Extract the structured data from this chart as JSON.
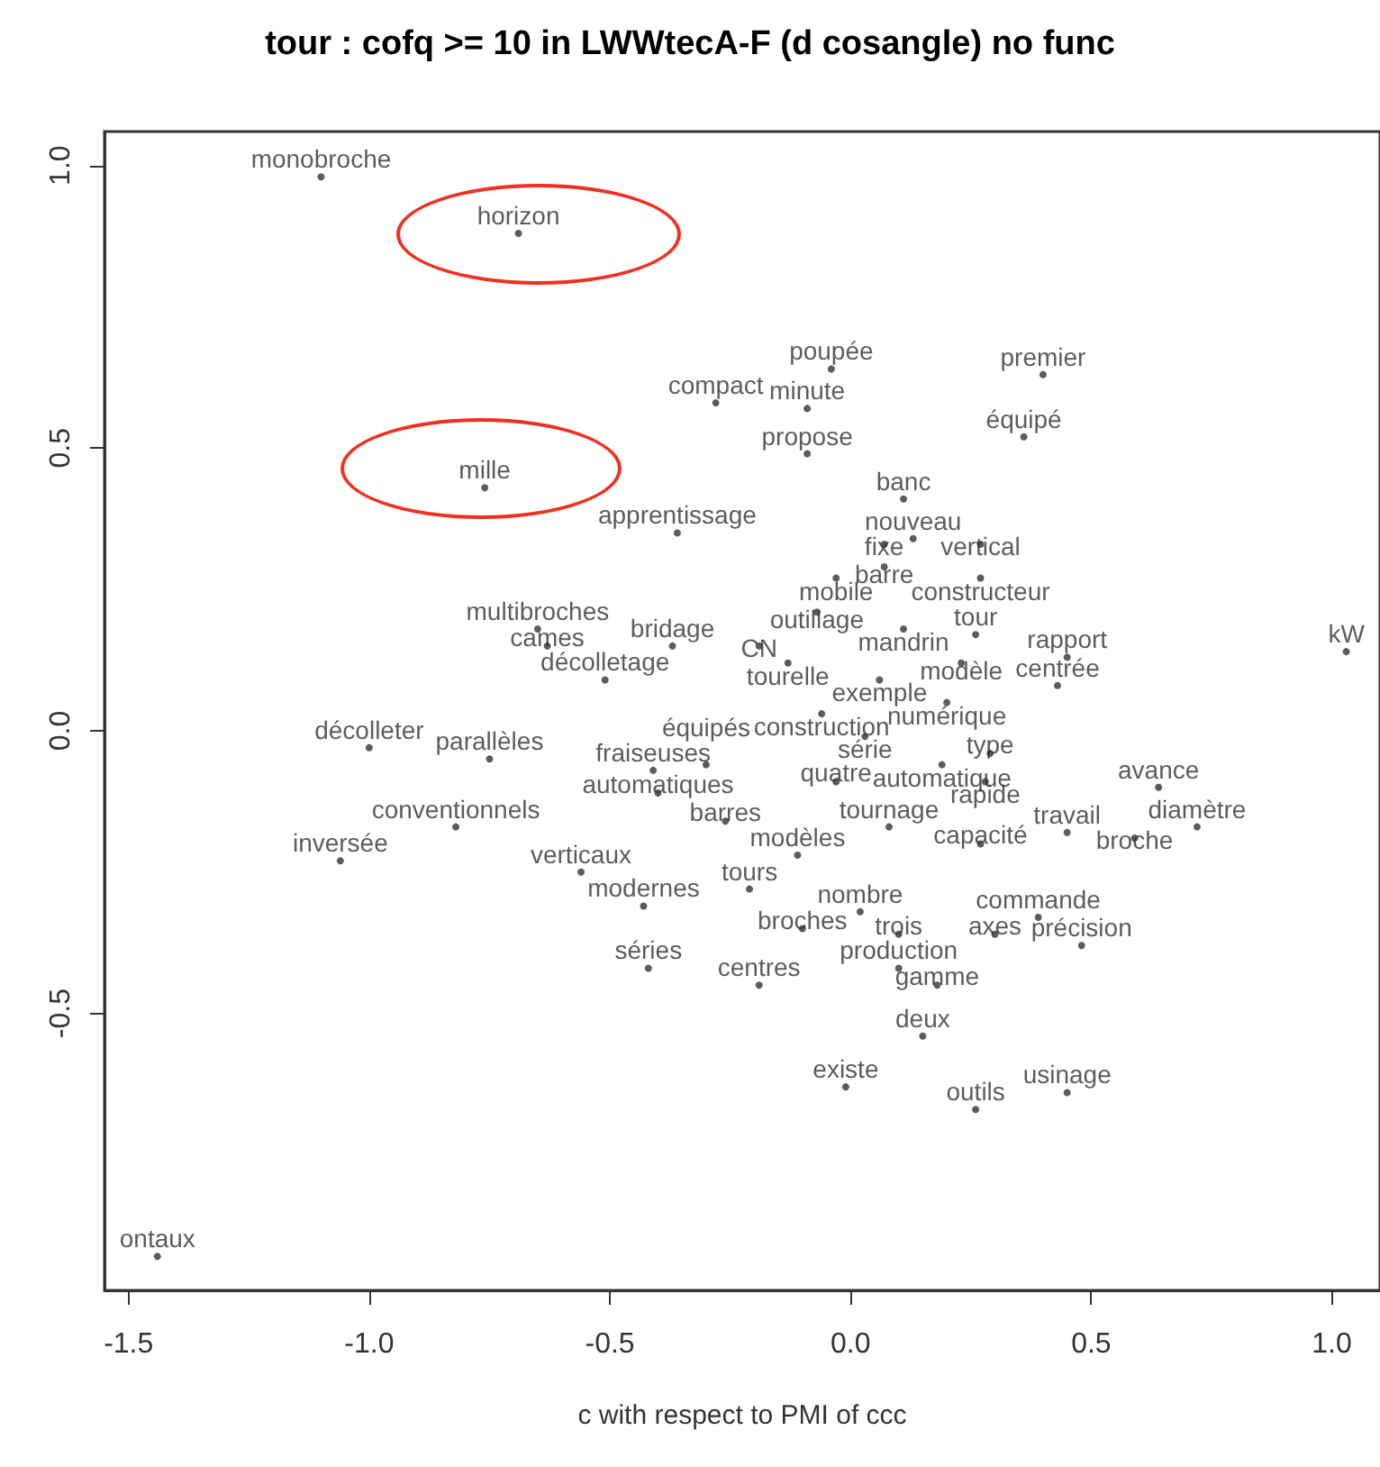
{
  "chart_data": {
    "type": "scatter",
    "title": "tour : cofq >= 10 in LWWtecA-F (d cosangle) no func",
    "xlabel": "c with respect to PMI of ccc",
    "marker": "circle",
    "grid": false,
    "xlim": [
      -1.55,
      1.1
    ],
    "xticks": [
      {
        "value": -1.5,
        "label": "-1.5"
      },
      {
        "value": -1,
        "label": "-1.0"
      },
      {
        "value": -0.5,
        "label": "-0.5"
      },
      {
        "value": 0,
        "label": "0.0"
      },
      {
        "value": 0.5,
        "label": "0.5"
      },
      {
        "value": 1,
        "label": "1.0"
      }
    ],
    "ylim": [
      -0.99,
      1.06
    ],
    "yticks": [
      {
        "value": -0.5,
        "label": "-0.5"
      },
      {
        "value": 0,
        "label": "0.0"
      },
      {
        "value": 0.5,
        "label": "0.5"
      },
      {
        "value": 1,
        "label": "1.0"
      }
    ],
    "series": [
      {
        "color": "#333333",
        "x": [
          -1.1,
          -0.69,
          -0.04,
          0.4,
          -0.28,
          -0.09,
          0.36,
          -0.09,
          -0.76,
          0.11,
          -0.36,
          0.13,
          0.07,
          0.27,
          0.07,
          -0.03,
          0.27,
          -0.07,
          -0.65,
          0.11,
          0.26,
          -0.63,
          -0.37,
          -0.19,
          -0.13,
          0.23,
          0.45,
          -0.51,
          0.06,
          0.43,
          0.2,
          -0.06,
          -1.0,
          -0.75,
          0.03,
          -0.41,
          -0.3,
          -0.4,
          -0.03,
          0.19,
          0.29,
          0.28,
          0.64,
          -0.82,
          -0.26,
          0.08,
          0.27,
          0.45,
          0.59,
          0.72,
          -1.06,
          -0.11,
          -0.56,
          -0.21,
          -0.43,
          0.02,
          0.39,
          -0.1,
          0.1,
          0.3,
          0.48,
          -0.42,
          -0.19,
          0.1,
          0.18,
          0.15,
          -0.01,
          0.26,
          0.45,
          1.03,
          -1.44
        ],
        "values": [
          0.98,
          0.88,
          0.64,
          0.63,
          0.58,
          0.57,
          0.52,
          0.49,
          0.43,
          0.41,
          0.35,
          0.34,
          0.33,
          0.33,
          0.29,
          0.27,
          0.27,
          0.21,
          0.18,
          0.18,
          0.17,
          0.15,
          0.15,
          0.15,
          0.12,
          0.12,
          0.13,
          0.09,
          0.09,
          0.08,
          0.05,
          0.03,
          -0.03,
          -0.05,
          -0.01,
          -0.07,
          -0.06,
          -0.11,
          -0.09,
          -0.06,
          -0.04,
          -0.09,
          -0.1,
          -0.17,
          -0.16,
          -0.17,
          -0.2,
          -0.18,
          -0.19,
          -0.17,
          -0.23,
          -0.22,
          -0.25,
          -0.28,
          -0.31,
          -0.32,
          -0.33,
          -0.35,
          -0.36,
          -0.36,
          -0.38,
          -0.42,
          -0.45,
          -0.42,
          -0.45,
          -0.54,
          -0.63,
          -0.67,
          -0.64,
          0.14,
          -0.93
        ],
        "value_labels": [
          "monobroche",
          "horizon",
          "poupée",
          "premier",
          "compact",
          "minute",
          "équipé",
          "propose",
          "mille",
          "banc",
          "apprentissage",
          "nouveau",
          "fixe",
          "vertical",
          "barre",
          "mobile",
          "constructeur",
          "outillage",
          "multibroches",
          "mandrin",
          "tour",
          "cames",
          "bridage",
          "CN",
          "tourelle",
          "modèle",
          "rapport",
          "décolletage",
          "exemple",
          "centrée",
          "numérique",
          "construction",
          "décolleter",
          "parallèles",
          "série",
          "fraiseuses",
          "équipés",
          "automatiques",
          "quatre",
          "automatique",
          "type",
          "rapide",
          "avance",
          "conventionnels",
          "barres",
          "tournage",
          "capacité",
          "travail",
          "broche",
          "diamètre",
          "inversée",
          "modèles",
          "verticaux",
          "tours",
          "modernes",
          "nombre",
          "commande",
          "broches",
          "trois",
          "axes",
          "précision",
          "séries",
          "centres",
          "production",
          "gamme",
          "deux",
          "existe",
          "outils",
          "usinage",
          "kW",
          "ontaux"
        ]
      }
    ]
  }
}
